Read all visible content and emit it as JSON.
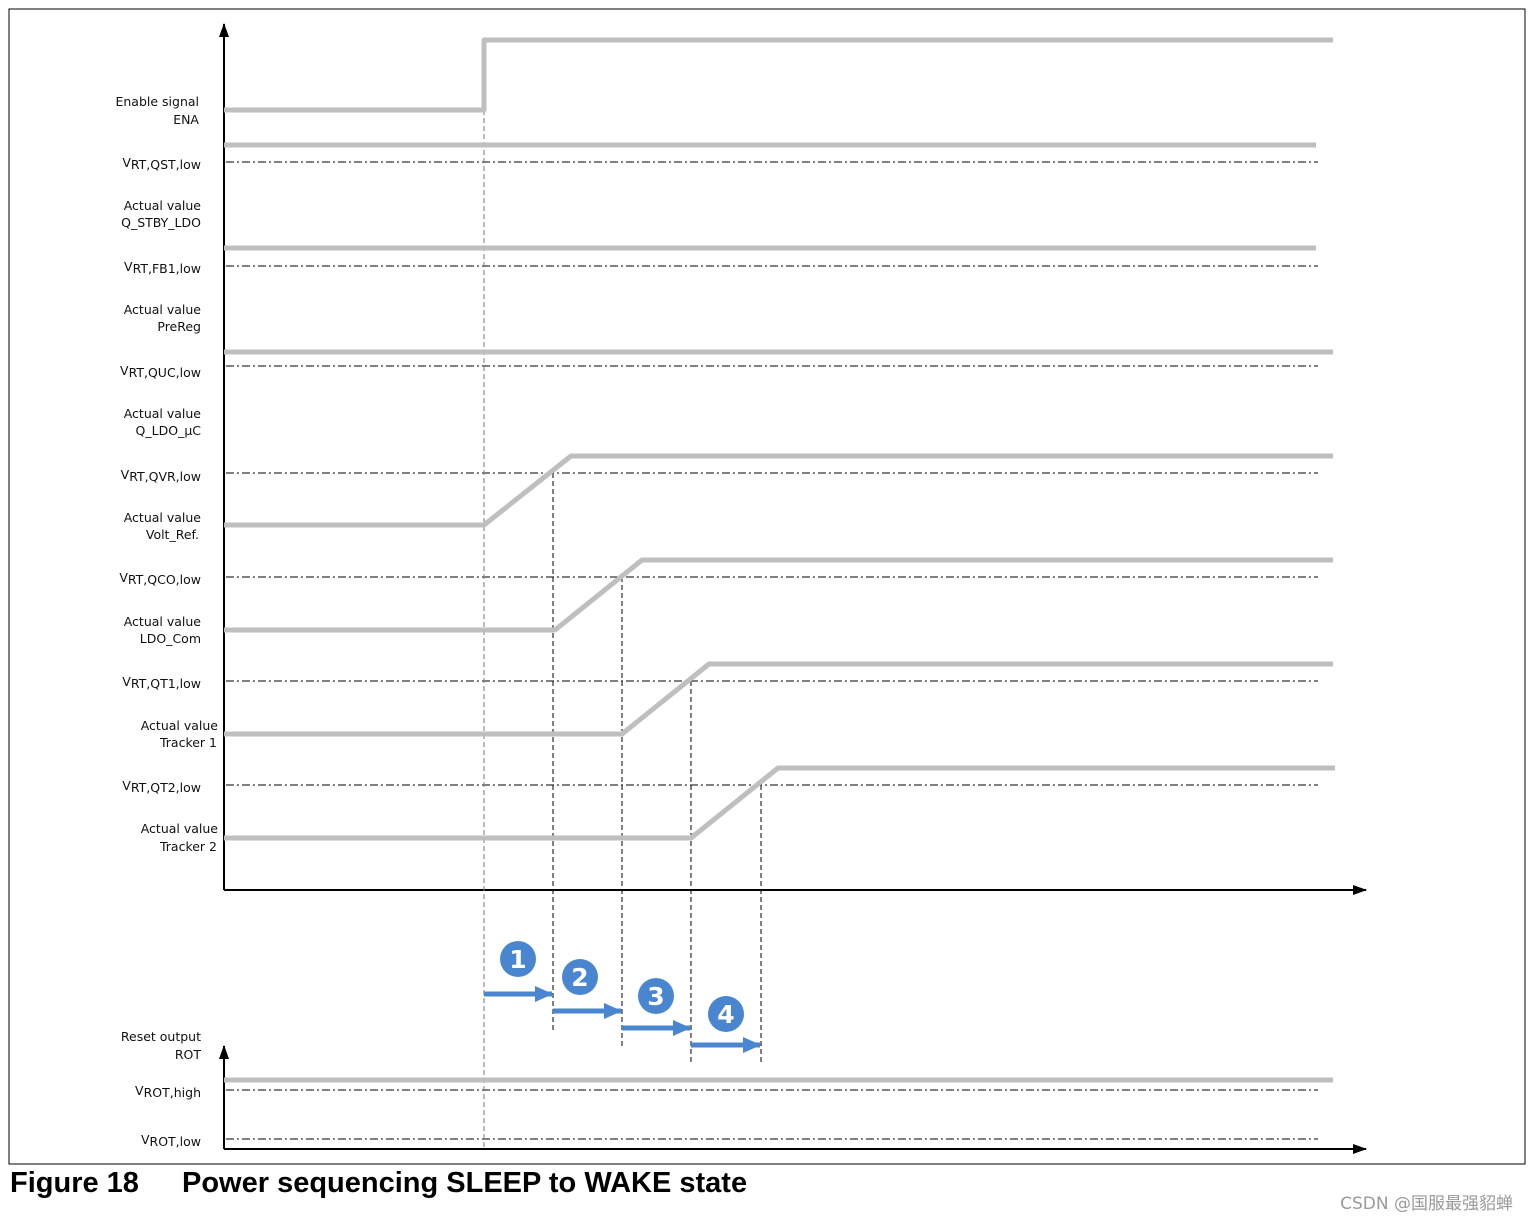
{
  "figure": {
    "number": "Figure 18",
    "title": "Power sequencing SLEEP to WAKE state"
  },
  "watermark": "CSDN @国服最强貂蝉",
  "signals": [
    {
      "id": "ena",
      "line1": "Enable signal",
      "line2": "ENA",
      "threshold_main": "",
      "threshold_sub": ""
    },
    {
      "id": "stby",
      "line1": "Actual value",
      "line2": "Q_STBY_LDO",
      "threshold_main": "V",
      "threshold_sub": "RT,QST,low"
    },
    {
      "id": "prereg",
      "line1": "Actual value",
      "line2": "PreReg",
      "threshold_main": "V",
      "threshold_sub": "RT,FB1,low"
    },
    {
      "id": "ldouc",
      "line1": "Actual value",
      "line2": "Q_LDO_µC",
      "threshold_main": "V",
      "threshold_sub": "RT,QUC,low"
    },
    {
      "id": "volt",
      "line1": "Actual value",
      "line2": "Volt_Ref.",
      "threshold_main": "V",
      "threshold_sub": "RT,QVR,low"
    },
    {
      "id": "com",
      "line1": "Actual value",
      "line2": "LDO_Com",
      "threshold_main": "V",
      "threshold_sub": "RT,QCO,low"
    },
    {
      "id": "t1",
      "line1": "Actual value",
      "line2": "Tracker 1",
      "threshold_main": "V",
      "threshold_sub": "RT,QT1,low"
    },
    {
      "id": "t2",
      "line1": "Actual value",
      "line2": "Tracker 2",
      "threshold_main": "V",
      "threshold_sub": "RT,QT2,low"
    }
  ],
  "reset": {
    "line1": "Reset output",
    "line2": "ROT",
    "high_main": "V",
    "high_sub": "ROT,high",
    "low_main": "V",
    "low_sub": "ROT,low"
  },
  "steps": [
    "1",
    "2",
    "3",
    "4"
  ],
  "colors": {
    "trace": "#bfbfbf",
    "step_marker": "#4a86d0",
    "axis": "#000000",
    "frame": "#000000"
  }
}
